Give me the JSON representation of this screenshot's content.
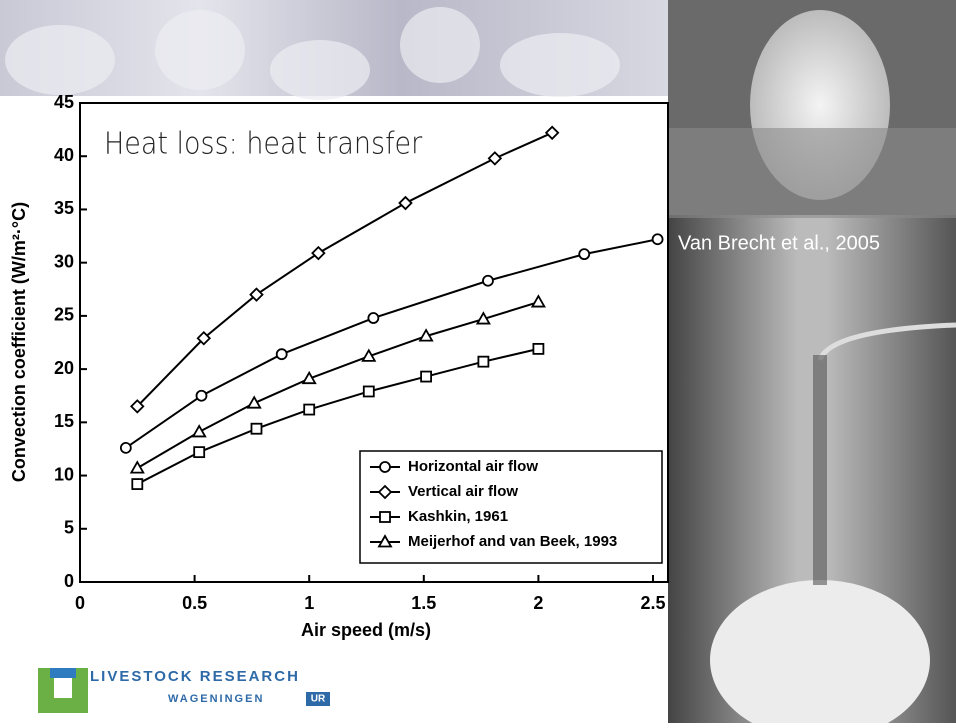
{
  "chart_data": {
    "type": "line",
    "title": "Heat loss: heat transfer",
    "x_label": "Air speed (m/s)",
    "y_label": "Convection coefficient (W/m²·°C)",
    "xlim": [
      0,
      2.5
    ],
    "xticks": [
      0,
      0.5,
      1,
      1.5,
      2,
      2.5
    ],
    "ylim": [
      0,
      45
    ],
    "yticks": [
      0,
      5,
      10,
      15,
      20,
      25,
      30,
      35,
      40,
      45
    ],
    "legend": "lower right",
    "series": [
      {
        "name": "Horizontal air flow",
        "color": "#000000",
        "marker": "circle",
        "x": [
          0.2,
          0.53,
          0.88,
          1.28,
          1.78,
          2.2,
          2.52
        ],
        "values": [
          12.6,
          17.5,
          21.4,
          24.8,
          28.3,
          30.8,
          32.2
        ]
      },
      {
        "name": "Vertical air flow",
        "color": "#000000",
        "marker": "diamond",
        "x": [
          0.25,
          0.54,
          0.77,
          1.04,
          1.42,
          1.81,
          2.06
        ],
        "values": [
          16.5,
          22.9,
          27.0,
          30.9,
          35.6,
          39.8,
          42.2
        ]
      },
      {
        "name": "Kashkin, 1961",
        "color": "#000000",
        "marker": "square",
        "x": [
          0.25,
          0.52,
          0.77,
          1.0,
          1.26,
          1.51,
          1.76,
          2.0
        ],
        "values": [
          9.2,
          12.2,
          14.4,
          16.2,
          17.9,
          19.3,
          20.7,
          21.9
        ]
      },
      {
        "name": "Meijerhof and van Beek, 1993",
        "color": "#000000",
        "marker": "triangle",
        "x": [
          0.25,
          0.52,
          0.76,
          1.0,
          1.26,
          1.51,
          1.76,
          2.0
        ],
        "values": [
          10.7,
          14.1,
          16.8,
          19.1,
          21.2,
          23.1,
          24.7,
          26.3
        ]
      }
    ]
  },
  "photo_caption": "Van Brecht et al., 2005",
  "logo": {
    "line1": "LIVESTOCK RESEARCH",
    "line2": "WAGENINGEN",
    "badge": "UR"
  }
}
